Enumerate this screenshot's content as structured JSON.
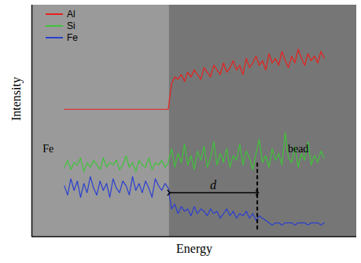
{
  "chart_data": {
    "type": "line",
    "x_label": "Energy",
    "y_label": "Intensity",
    "xlim": [
      0,
      100
    ],
    "ylim": [
      0,
      100
    ],
    "xticks": [],
    "yticks": [],
    "tick_labels": false,
    "grid": false,
    "legend": "top-left",
    "x": [
      10,
      11,
      12,
      13,
      14,
      15,
      16,
      17,
      18,
      19,
      20,
      21,
      22,
      23,
      24,
      25,
      26,
      27,
      28,
      29,
      30,
      31,
      32,
      33,
      34,
      35,
      36,
      37,
      38,
      39,
      40,
      41,
      42,
      43,
      44,
      45,
      46,
      47,
      48,
      49,
      50,
      51,
      52,
      53,
      54,
      55,
      56,
      57,
      58,
      59,
      60,
      61,
      62,
      63,
      64,
      65,
      66,
      67,
      68,
      69,
      70,
      71,
      72,
      73,
      74,
      75,
      76,
      77,
      78,
      79,
      80,
      81,
      82,
      83,
      84,
      85,
      86,
      87,
      88,
      89,
      90
    ],
    "series": [
      {
        "name": "Al",
        "color": "#e8201c",
        "values": [
          55,
          55,
          55,
          55,
          55,
          55,
          55,
          55,
          55,
          55,
          55,
          55,
          55,
          55,
          55,
          55,
          55,
          55,
          55,
          55,
          55,
          55,
          55,
          55,
          55,
          55,
          55,
          55,
          55,
          55,
          55,
          55,
          55,
          66,
          69,
          68,
          70,
          67,
          71,
          69,
          72,
          70,
          68,
          73,
          71,
          69,
          74,
          72,
          70,
          75,
          71,
          73,
          76,
          72,
          74,
          70,
          77,
          73,
          75,
          78,
          74,
          76,
          72,
          79,
          75,
          77,
          74,
          80,
          76,
          73,
          78,
          75,
          81,
          77,
          74,
          79,
          76,
          78,
          75,
          80,
          77
        ]
      },
      {
        "name": "Si",
        "color": "#3fc33a",
        "values": [
          30,
          33,
          29,
          32,
          31,
          34,
          28,
          32,
          30,
          33,
          31,
          29,
          34,
          30,
          32,
          31,
          33,
          29,
          31,
          35,
          30,
          32,
          28,
          33,
          31,
          30,
          34,
          29,
          32,
          31,
          33,
          30,
          32,
          38,
          30,
          36,
          32,
          40,
          31,
          35,
          29,
          37,
          33,
          39,
          30,
          34,
          41,
          31,
          36,
          32,
          38,
          30,
          35,
          33,
          40,
          31,
          37,
          34,
          29,
          36,
          42,
          32,
          35,
          30,
          38,
          33,
          36,
          31,
          45,
          34,
          32,
          39,
          30,
          36,
          33,
          41,
          31,
          35,
          32,
          37,
          34
        ]
      },
      {
        "name": "Fe",
        "color": "#2a3fd0",
        "values": [
          22,
          18,
          25,
          20,
          24,
          17,
          23,
          19,
          26,
          21,
          18,
          24,
          20,
          23,
          17,
          25,
          21,
          19,
          24,
          22,
          18,
          26,
          20,
          23,
          19,
          24,
          21,
          17,
          25,
          22,
          20,
          23,
          21,
          12,
          14,
          10,
          13,
          11,
          12,
          9,
          13,
          10,
          12,
          11,
          9,
          12,
          10,
          11,
          8,
          10,
          12,
          9,
          11,
          8,
          10,
          9,
          11,
          8,
          10,
          7,
          9,
          8,
          7,
          6,
          5,
          6,
          6,
          5,
          6,
          6,
          6,
          5,
          6,
          6,
          6,
          5,
          6,
          6,
          6,
          5,
          6
        ]
      }
    ],
    "regions": [
      [
        0,
        42.2
      ],
      [
        42.2,
        100
      ]
    ],
    "annotations": [
      {
        "text": "Fe",
        "x": 5,
        "y": 38
      },
      {
        "text": "bead",
        "x": 82,
        "y": 38
      }
    ],
    "span": {
      "label": "d",
      "x": [
        42.2,
        69.4
      ],
      "y": 19
    },
    "dashed": {
      "x": 69.4,
      "y": [
        3,
        32
      ]
    }
  }
}
